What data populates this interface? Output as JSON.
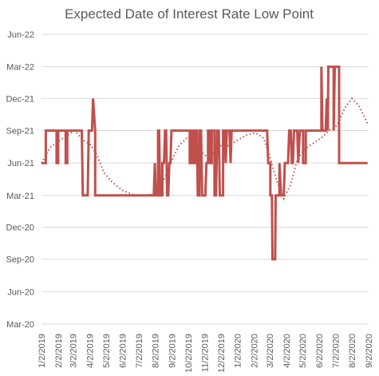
{
  "chart_data": {
    "type": "line",
    "title": "Expected Date of Interest Rate Low Point",
    "xlabel": "",
    "ylabel": "",
    "x_ticks": [
      "1/2/2019",
      "2/2/2019",
      "3/2/2019",
      "4/2/2019",
      "5/2/2019",
      "6/2/2019",
      "7/2/2019",
      "8/2/2019",
      "9/2/2019",
      "10/2/2019",
      "11/2/2019",
      "12/2/2019",
      "1/2/2020",
      "2/2/2020",
      "3/2/2020",
      "4/2/2020",
      "5/2/2020",
      "6/2/2020",
      "7/2/2020",
      "8/2/2020",
      "9/2/2020"
    ],
    "y_ticks": [
      "Mar-20",
      "Jun-20",
      "Sep-20",
      "Dec-20",
      "Mar-21",
      "Jun-21",
      "Sep-21",
      "Dec-21",
      "Mar-22",
      "Jun-22"
    ],
    "ylim": [
      "2020-03-01",
      "2022-06-01"
    ],
    "xlim": [
      "2019-01-02",
      "2020-09-02"
    ],
    "grid": true,
    "colors": {
      "series": "#c0504d",
      "grid": "#d9d9d9",
      "text": "#595959"
    },
    "series": [
      {
        "style": "solid",
        "points": [
          [
            "2019-01-02",
            "2021-06-01"
          ],
          [
            "2019-01-10",
            "2021-06-01"
          ],
          [
            "2019-01-10",
            "2021-09-01"
          ],
          [
            "2019-01-30",
            "2021-09-01"
          ],
          [
            "2019-01-30",
            "2021-06-01"
          ],
          [
            "2019-02-02",
            "2021-06-01"
          ],
          [
            "2019-02-02",
            "2021-09-01"
          ],
          [
            "2019-02-16",
            "2021-09-01"
          ],
          [
            "2019-02-16",
            "2021-06-01"
          ],
          [
            "2019-02-19",
            "2021-06-01"
          ],
          [
            "2019-02-19",
            "2021-09-01"
          ],
          [
            "2019-03-18",
            "2021-09-01"
          ],
          [
            "2019-03-20",
            "2021-03-01"
          ],
          [
            "2019-03-29",
            "2021-03-01"
          ],
          [
            "2019-03-31",
            "2021-09-01"
          ],
          [
            "2019-04-06",
            "2021-09-01"
          ],
          [
            "2019-04-08",
            "2021-12-01"
          ],
          [
            "2019-04-12",
            "2021-09-01"
          ],
          [
            "2019-04-12",
            "2021-03-01"
          ],
          [
            "2019-07-30",
            "2021-03-01"
          ],
          [
            "2019-08-01",
            "2021-06-01"
          ],
          [
            "2019-08-03",
            "2021-03-01"
          ],
          [
            "2019-08-07",
            "2021-03-01"
          ],
          [
            "2019-08-07",
            "2021-09-01"
          ],
          [
            "2019-08-09",
            "2021-09-01"
          ],
          [
            "2019-08-11",
            "2021-03-01"
          ],
          [
            "2019-08-15",
            "2021-03-01"
          ],
          [
            "2019-08-15",
            "2021-06-01"
          ],
          [
            "2019-08-18",
            "2021-06-01"
          ],
          [
            "2019-08-20",
            "2021-09-01"
          ],
          [
            "2019-08-22",
            "2021-09-01"
          ],
          [
            "2019-08-24",
            "2021-03-01"
          ],
          [
            "2019-08-26",
            "2021-03-01"
          ],
          [
            "2019-08-28",
            "2021-06-01"
          ],
          [
            "2019-08-30",
            "2021-06-01"
          ],
          [
            "2019-09-01",
            "2021-09-01"
          ],
          [
            "2019-10-05",
            "2021-09-01"
          ],
          [
            "2019-10-05",
            "2021-06-01"
          ],
          [
            "2019-10-08",
            "2021-06-01"
          ],
          [
            "2019-10-08",
            "2021-09-01"
          ],
          [
            "2019-10-12",
            "2021-09-01"
          ],
          [
            "2019-10-12",
            "2021-06-01"
          ],
          [
            "2019-10-15",
            "2021-06-01"
          ],
          [
            "2019-10-15",
            "2021-09-01"
          ],
          [
            "2019-10-18",
            "2021-09-01"
          ],
          [
            "2019-10-20",
            "2021-03-01"
          ],
          [
            "2019-10-23",
            "2021-03-01"
          ],
          [
            "2019-10-23",
            "2021-09-01"
          ],
          [
            "2019-10-26",
            "2021-09-01"
          ],
          [
            "2019-10-28",
            "2021-03-01"
          ],
          [
            "2019-11-03",
            "2021-03-01"
          ],
          [
            "2019-11-05",
            "2021-06-01"
          ],
          [
            "2019-11-08",
            "2021-06-01"
          ],
          [
            "2019-11-08",
            "2021-09-01"
          ],
          [
            "2019-11-12",
            "2021-09-01"
          ],
          [
            "2019-11-12",
            "2021-06-01"
          ],
          [
            "2019-11-15",
            "2021-06-01"
          ],
          [
            "2019-11-15",
            "2021-09-01"
          ],
          [
            "2019-11-20",
            "2021-09-01"
          ],
          [
            "2019-11-20",
            "2021-03-01"
          ],
          [
            "2019-11-23",
            "2021-03-01"
          ],
          [
            "2019-11-25",
            "2021-09-01"
          ],
          [
            "2019-11-28",
            "2021-09-01"
          ],
          [
            "2019-11-30",
            "2021-03-01"
          ],
          [
            "2019-12-06",
            "2021-03-01"
          ],
          [
            "2019-12-06",
            "2021-09-01"
          ],
          [
            "2019-12-09",
            "2021-09-01"
          ],
          [
            "2019-12-11",
            "2021-06-01"
          ],
          [
            "2019-12-13",
            "2021-09-01"
          ],
          [
            "2019-12-18",
            "2021-09-01"
          ],
          [
            "2019-12-20",
            "2021-06-01"
          ],
          [
            "2019-12-22",
            "2021-09-01"
          ],
          [
            "2020-02-26",
            "2021-09-01"
          ],
          [
            "2020-02-28",
            "2021-06-01"
          ],
          [
            "2020-03-03",
            "2021-06-01"
          ],
          [
            "2020-03-03",
            "2021-03-01"
          ],
          [
            "2020-03-06",
            "2021-03-01"
          ],
          [
            "2020-03-07",
            "2020-09-01"
          ],
          [
            "2020-03-12",
            "2020-09-01"
          ],
          [
            "2020-03-13",
            "2021-03-01"
          ],
          [
            "2020-03-20",
            "2021-03-01"
          ],
          [
            "2020-03-20",
            "2021-06-01"
          ],
          [
            "2020-03-23",
            "2021-03-01"
          ],
          [
            "2020-03-28",
            "2021-03-01"
          ],
          [
            "2020-03-30",
            "2021-06-01"
          ],
          [
            "2020-04-05",
            "2021-06-01"
          ],
          [
            "2020-04-07",
            "2021-09-01"
          ],
          [
            "2020-04-10",
            "2021-09-01"
          ],
          [
            "2020-04-12",
            "2021-06-01"
          ],
          [
            "2020-04-14",
            "2021-06-01"
          ],
          [
            "2020-04-16",
            "2021-09-01"
          ],
          [
            "2020-04-22",
            "2021-09-01"
          ],
          [
            "2020-04-24",
            "2021-06-01"
          ],
          [
            "2020-04-27",
            "2021-09-01"
          ],
          [
            "2020-05-03",
            "2021-09-01"
          ],
          [
            "2020-05-03",
            "2021-06-01"
          ],
          [
            "2020-05-08",
            "2021-06-01"
          ],
          [
            "2020-05-08",
            "2021-09-01"
          ],
          [
            "2020-06-06",
            "2021-09-01"
          ],
          [
            "2020-06-06",
            "2022-03-01"
          ],
          [
            "2020-06-08",
            "2021-09-01"
          ],
          [
            "2020-06-14",
            "2021-09-01"
          ],
          [
            "2020-06-16",
            "2021-12-01"
          ],
          [
            "2020-06-18",
            "2021-09-01"
          ],
          [
            "2020-06-19",
            "2022-03-01"
          ],
          [
            "2020-06-29",
            "2022-03-01"
          ],
          [
            "2020-06-29",
            "2021-09-01"
          ],
          [
            "2020-07-01",
            "2022-03-01"
          ],
          [
            "2020-07-09",
            "2022-03-01"
          ],
          [
            "2020-07-09",
            "2021-06-01"
          ],
          [
            "2020-08-31",
            "2021-06-01"
          ]
        ]
      },
      {
        "style": "dotted",
        "points": [
          [
            "2019-01-02",
            "2021-06-01"
          ],
          [
            "2019-01-18",
            "2021-07-15"
          ],
          [
            "2019-02-02",
            "2021-08-01"
          ],
          [
            "2019-02-20",
            "2021-08-20"
          ],
          [
            "2019-03-05",
            "2021-09-01"
          ],
          [
            "2019-03-20",
            "2021-08-05"
          ],
          [
            "2019-04-02",
            "2021-07-25"
          ],
          [
            "2019-04-15",
            "2021-06-25"
          ],
          [
            "2019-04-28",
            "2021-05-05"
          ],
          [
            "2019-05-12",
            "2021-04-10"
          ],
          [
            "2019-06-02",
            "2021-03-15"
          ],
          [
            "2019-06-25",
            "2021-03-01"
          ],
          [
            "2019-07-20",
            "2021-03-01"
          ],
          [
            "2019-08-02",
            "2021-03-10"
          ],
          [
            "2019-08-20",
            "2021-04-20"
          ],
          [
            "2019-09-02",
            "2021-06-10"
          ],
          [
            "2019-09-15",
            "2021-07-20"
          ],
          [
            "2019-10-02",
            "2021-08-15"
          ],
          [
            "2019-10-15",
            "2021-08-01"
          ],
          [
            "2019-10-28",
            "2021-07-01"
          ],
          [
            "2019-11-08",
            "2021-06-15"
          ],
          [
            "2019-11-20",
            "2021-07-05"
          ],
          [
            "2019-12-02",
            "2021-07-20"
          ],
          [
            "2019-12-18",
            "2021-07-20"
          ],
          [
            "2020-01-02",
            "2021-08-05"
          ],
          [
            "2020-01-20",
            "2021-08-20"
          ],
          [
            "2020-02-05",
            "2021-08-25"
          ],
          [
            "2020-02-20",
            "2021-08-10"
          ],
          [
            "2020-03-02",
            "2021-06-20"
          ],
          [
            "2020-03-15",
            "2021-04-10"
          ],
          [
            "2020-03-28",
            "2021-02-20"
          ],
          [
            "2020-04-10",
            "2021-04-01"
          ],
          [
            "2020-04-22",
            "2021-06-10"
          ],
          [
            "2020-05-05",
            "2021-07-10"
          ],
          [
            "2020-05-20",
            "2021-07-25"
          ],
          [
            "2020-06-05",
            "2021-08-10"
          ],
          [
            "2020-06-20",
            "2021-09-01"
          ],
          [
            "2020-07-05",
            "2021-09-15"
          ],
          [
            "2020-07-20",
            "2021-11-05"
          ],
          [
            "2020-08-02",
            "2021-12-01"
          ],
          [
            "2020-08-15",
            "2021-11-10"
          ],
          [
            "2020-08-28",
            "2021-10-01"
          ],
          [
            "2020-08-31",
            "2021-09-20"
          ]
        ]
      }
    ]
  }
}
